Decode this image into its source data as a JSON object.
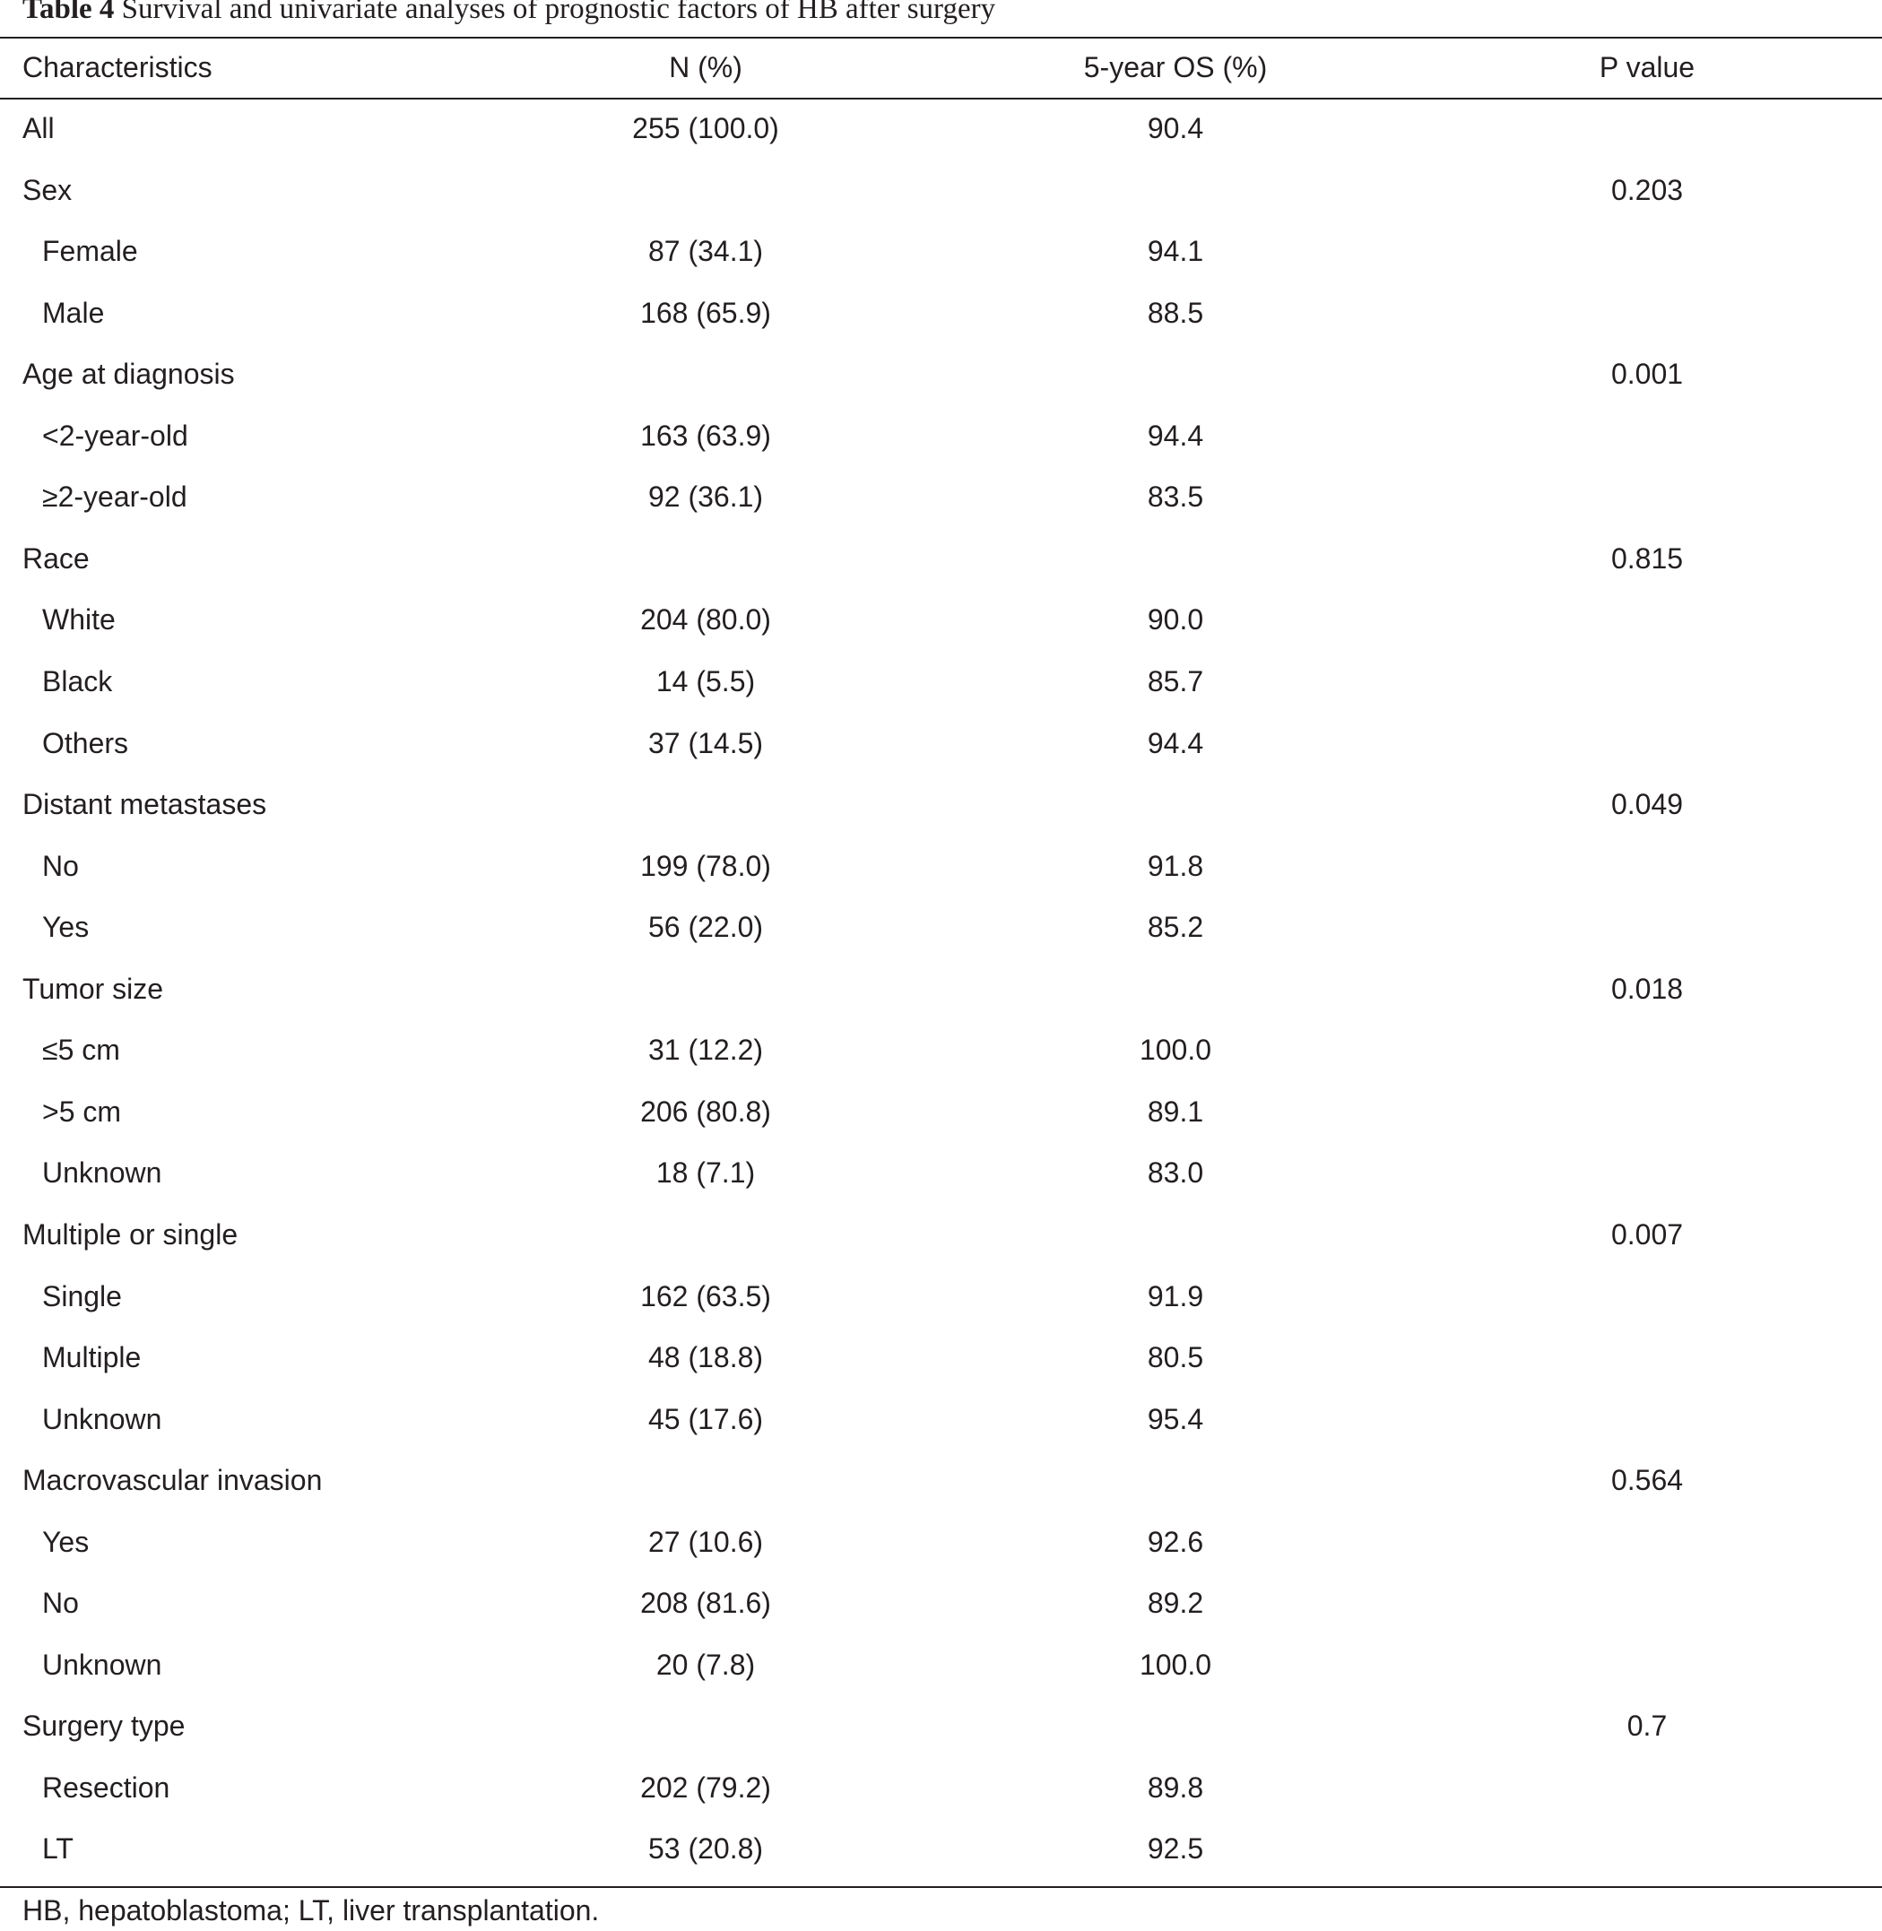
{
  "caption": {
    "label": "Table 4",
    "text": "Survival and univariate analyses of prognostic factors of HB after surgery"
  },
  "columns": {
    "characteristics": "Characteristics",
    "n": "N (%)",
    "os": "5-year OS (%)",
    "p": "P value"
  },
  "rows": [
    {
      "label": "All",
      "n": "255 (100.0)",
      "os": "90.4",
      "p": "",
      "sub": false
    },
    {
      "label": "Sex",
      "n": "",
      "os": "",
      "p": "0.203",
      "sub": false
    },
    {
      "label": "Female",
      "n": "87 (34.1)",
      "os": "94.1",
      "p": "",
      "sub": true
    },
    {
      "label": "Male",
      "n": "168 (65.9)",
      "os": "88.5",
      "p": "",
      "sub": true
    },
    {
      "label": "Age at diagnosis",
      "n": "",
      "os": "",
      "p": "0.001",
      "sub": false
    },
    {
      "label": "<2-year-old",
      "n": "163 (63.9)",
      "os": "94.4",
      "p": "",
      "sub": true
    },
    {
      "label": "≥2-year-old",
      "n": "92 (36.1)",
      "os": "83.5",
      "p": "",
      "sub": true
    },
    {
      "label": "Race",
      "n": "",
      "os": "",
      "p": "0.815",
      "sub": false
    },
    {
      "label": "White",
      "n": "204 (80.0)",
      "os": "90.0",
      "p": "",
      "sub": true
    },
    {
      "label": "Black",
      "n": "14 (5.5)",
      "os": "85.7",
      "p": "",
      "sub": true
    },
    {
      "label": "Others",
      "n": "37 (14.5)",
      "os": "94.4",
      "p": "",
      "sub": true
    },
    {
      "label": "Distant metastases",
      "n": "",
      "os": "",
      "p": "0.049",
      "sub": false
    },
    {
      "label": "No",
      "n": "199 (78.0)",
      "os": "91.8",
      "p": "",
      "sub": true
    },
    {
      "label": "Yes",
      "n": "56 (22.0)",
      "os": "85.2",
      "p": "",
      "sub": true
    },
    {
      "label": "Tumor size",
      "n": "",
      "os": "",
      "p": "0.018",
      "sub": false
    },
    {
      "label": "≤5 cm",
      "n": "31 (12.2)",
      "os": "100.0",
      "p": "",
      "sub": true
    },
    {
      "label": ">5 cm",
      "n": "206 (80.8)",
      "os": "89.1",
      "p": "",
      "sub": true
    },
    {
      "label": "Unknown",
      "n": "18 (7.1)",
      "os": "83.0",
      "p": "",
      "sub": true
    },
    {
      "label": "Multiple or single",
      "n": "",
      "os": "",
      "p": "0.007",
      "sub": false
    },
    {
      "label": "Single",
      "n": "162 (63.5)",
      "os": "91.9",
      "p": "",
      "sub": true
    },
    {
      "label": "Multiple",
      "n": "48 (18.8)",
      "os": "80.5",
      "p": "",
      "sub": true
    },
    {
      "label": "Unknown",
      "n": "45 (17.6)",
      "os": "95.4",
      "p": "",
      "sub": true
    },
    {
      "label": "Macrovascular invasion",
      "n": "",
      "os": "",
      "p": "0.564",
      "sub": false
    },
    {
      "label": "Yes",
      "n": "27 (10.6)",
      "os": "92.6",
      "p": "",
      "sub": true
    },
    {
      "label": "No",
      "n": "208 (81.6)",
      "os": "89.2",
      "p": "",
      "sub": true
    },
    {
      "label": "Unknown",
      "n": "20 (7.8)",
      "os": "100.0",
      "p": "",
      "sub": true
    },
    {
      "label": "Surgery type",
      "n": "",
      "os": "",
      "p": "0.7",
      "sub": false
    },
    {
      "label": "Resection",
      "n": "202 (79.2)",
      "os": "89.8",
      "p": "",
      "sub": true
    },
    {
      "label": "LT",
      "n": "53 (20.8)",
      "os": "92.5",
      "p": "",
      "sub": true
    }
  ],
  "footnote": "HB, hepatoblastoma; LT, liver transplantation."
}
